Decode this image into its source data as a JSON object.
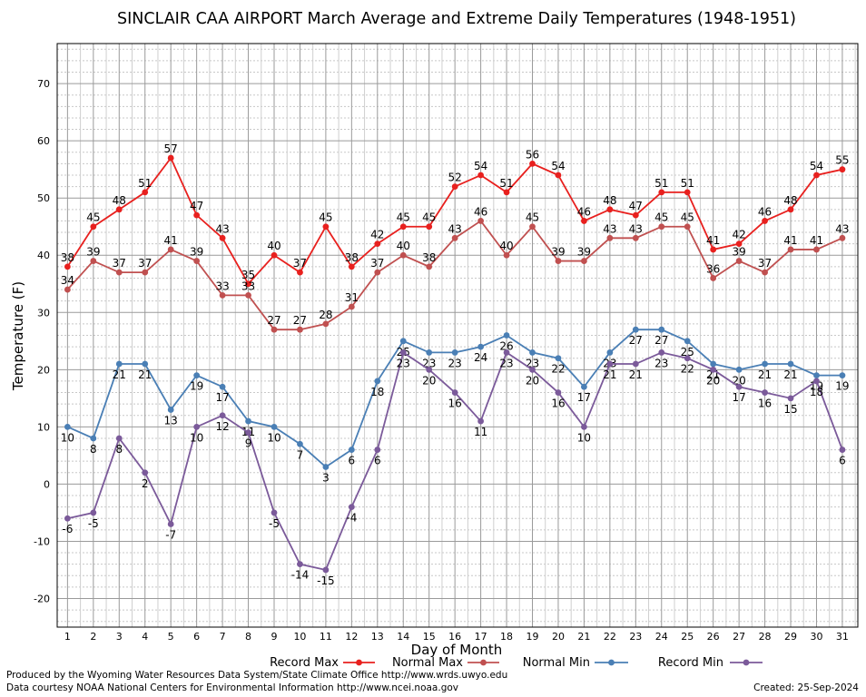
{
  "chart_data": {
    "type": "line",
    "title": "SINCLAIR CAA AIRPORT March Average and Extreme Daily Temperatures (1948-1951)",
    "xlabel": "Day of Month",
    "ylabel": "Temperature (F)",
    "x": [
      1,
      2,
      3,
      4,
      5,
      6,
      7,
      8,
      9,
      10,
      11,
      12,
      13,
      14,
      15,
      16,
      17,
      18,
      19,
      20,
      21,
      22,
      23,
      24,
      25,
      26,
      27,
      28,
      29,
      30,
      31
    ],
    "xlim": [
      0.6,
      31.6
    ],
    "ylim": [
      -25,
      77
    ],
    "yticks": [
      -20,
      -10,
      0,
      10,
      20,
      30,
      40,
      50,
      60,
      70
    ],
    "grid": true,
    "legend_position": "bottom",
    "series": [
      {
        "name": "Record Max",
        "color": "#e8201e",
        "values": [
          38,
          45,
          48,
          51,
          57,
          47,
          43,
          35,
          40,
          37,
          45,
          38,
          42,
          45,
          45,
          52,
          54,
          51,
          56,
          54,
          46,
          48,
          47,
          51,
          51,
          41,
          42,
          46,
          48,
          54,
          55
        ]
      },
      {
        "name": "Normal Max",
        "color": "#c05050",
        "values": [
          34,
          39,
          37,
          37,
          41,
          39,
          33,
          33,
          27,
          27,
          28,
          31,
          37,
          40,
          38,
          43,
          46,
          40,
          45,
          39,
          39,
          43,
          43,
          45,
          45,
          36,
          39,
          37,
          41,
          41,
          43
        ]
      },
      {
        "name": "Normal Min",
        "color": "#4a7fb5",
        "values": [
          10,
          8,
          21,
          21,
          13,
          19,
          17,
          11,
          10,
          7,
          3,
          6,
          18,
          25,
          23,
          23,
          24,
          26,
          23,
          22,
          17,
          23,
          27,
          27,
          25,
          21,
          20,
          21,
          21,
          19,
          19
        ]
      },
      {
        "name": "Record Min",
        "color": "#7b5a9a",
        "values": [
          -6,
          -5,
          8,
          2,
          -7,
          10,
          12,
          9,
          -5,
          -14,
          -15,
          -4,
          6,
          23,
          20,
          16,
          11,
          23,
          20,
          16,
          10,
          21,
          21,
          23,
          22,
          20,
          17,
          16,
          15,
          18,
          6
        ]
      }
    ]
  },
  "footer": {
    "produced": "Produced by the Wyoming Water Resources Data System/State Climate Office http://www.wrds.uwyo.edu",
    "courtesy": "Data courtesy NOAA National Centers for Environmental Information http://www.ncei.noaa.gov",
    "created": "Created: 25-Sep-2024"
  }
}
